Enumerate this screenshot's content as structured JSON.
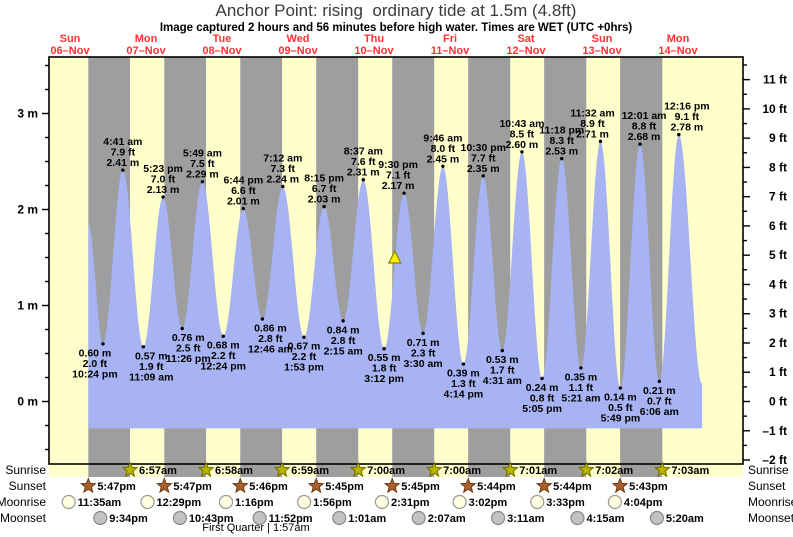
{
  "title": "Anchor Point: rising  ordinary tide at 1.5m (4.8ft)",
  "subtitle": "Image captured 2 hours and 56 minutes before high water. Times are WET (UTC +0hrs)",
  "chart_data": {
    "type": "area",
    "x_axis": {
      "days": [
        {
          "name": "Sun",
          "date": "06–Nov"
        },
        {
          "name": "Mon",
          "date": "07–Nov"
        },
        {
          "name": "Tue",
          "date": "08–Nov"
        },
        {
          "name": "Wed",
          "date": "09–Nov"
        },
        {
          "name": "Thu",
          "date": "10–Nov"
        },
        {
          "name": "Fri",
          "date": "11–Nov"
        },
        {
          "name": "Sat",
          "date": "12–Nov"
        },
        {
          "name": "Sun",
          "date": "13–Nov"
        },
        {
          "name": "Mon",
          "date": "14–Nov"
        }
      ]
    },
    "y_axis_left": {
      "unit": "m",
      "values": [
        0,
        1,
        2,
        3
      ],
      "labels": [
        "0 m",
        "1 m",
        "2 m",
        "3 m"
      ]
    },
    "y_axis_right": {
      "unit": "ft",
      "values": [
        -2,
        -1,
        0,
        1,
        2,
        3,
        4,
        5,
        6,
        7,
        8,
        9,
        10,
        11
      ],
      "labels": [
        "–2 ft",
        "–1 ft",
        "0 ft",
        "1 ft",
        "2 ft",
        "3 ft",
        "4 ft",
        "5 ft",
        "6 ft",
        "7 ft",
        "8 ft",
        "9 ft",
        "10 ft",
        "11 ft"
      ]
    },
    "tide_events": [
      {
        "kind": "low",
        "day": 0,
        "time": "10:24 pm",
        "ft": "2.0 ft",
        "m": "0.60 m"
      },
      {
        "kind": "high",
        "day": 1,
        "time": "4:41 am",
        "ft": "7.9 ft",
        "m": "2.41 m"
      },
      {
        "kind": "low",
        "day": 1,
        "time": "11:09 am",
        "ft": "1.9 ft",
        "m": "0.57 m"
      },
      {
        "kind": "high",
        "day": 1,
        "time": "5:23 pm",
        "ft": "7.0 ft",
        "m": "2.13 m"
      },
      {
        "kind": "low",
        "day": 1,
        "time": "11:26 pm",
        "ft": "2.5 ft",
        "m": "0.76 m"
      },
      {
        "kind": "high",
        "day": 2,
        "time": "5:49 am",
        "ft": "7.5 ft",
        "m": "2.29 m"
      },
      {
        "kind": "low",
        "day": 2,
        "time": "12:24 pm",
        "ft": "2.2 ft",
        "m": "0.68 m"
      },
      {
        "kind": "high",
        "day": 2,
        "time": "6:44 pm",
        "ft": "6.6 ft",
        "m": "2.01 m"
      },
      {
        "kind": "low",
        "day": 3,
        "time": "12:46 am",
        "ft": "2.8 ft",
        "m": "0.86 m"
      },
      {
        "kind": "high",
        "day": 3,
        "time": "7:12 am",
        "ft": "7.3 ft",
        "m": "2.24 m"
      },
      {
        "kind": "low",
        "day": 3,
        "time": "1:53 pm",
        "ft": "2.2 ft",
        "m": "0.67 m"
      },
      {
        "kind": "high",
        "day": 3,
        "time": "8:15 pm",
        "ft": "6.7 ft",
        "m": "2.03 m"
      },
      {
        "kind": "low",
        "day": 4,
        "time": "2:15 am",
        "ft": "2.8 ft",
        "m": "0.84 m"
      },
      {
        "kind": "high",
        "day": 4,
        "time": "8:37 am",
        "ft": "7.6 ft",
        "m": "2.31 m"
      },
      {
        "kind": "low",
        "day": 4,
        "time": "3:12 pm",
        "ft": "1.8 ft",
        "m": "0.55 m"
      },
      {
        "kind": "high",
        "day": 4,
        "time": "9:30 pm",
        "ft": "7.1 ft",
        "m": "2.17 m"
      },
      {
        "kind": "low",
        "day": 5,
        "time": "3:30 am",
        "ft": "2.3 ft",
        "m": "0.71 m"
      },
      {
        "kind": "high",
        "day": 5,
        "time": "9:46 am",
        "ft": "8.0 ft",
        "m": "2.45 m"
      },
      {
        "kind": "low",
        "day": 5,
        "time": "4:14 pm",
        "ft": "1.3 ft",
        "m": "0.39 m"
      },
      {
        "kind": "high",
        "day": 5,
        "time": "10:30 pm",
        "ft": "7.7 ft",
        "m": "2.35 m"
      },
      {
        "kind": "low",
        "day": 6,
        "time": "4:31 am",
        "ft": "1.7 ft",
        "m": "0.53 m"
      },
      {
        "kind": "high",
        "day": 6,
        "time": "10:43 am",
        "ft": "8.5 ft",
        "m": "2.60 m"
      },
      {
        "kind": "low",
        "day": 6,
        "time": "5:05 pm",
        "ft": "0.8 ft",
        "m": "0.24 m"
      },
      {
        "kind": "high",
        "day": 6,
        "time": "11:18 pm",
        "ft": "8.3 ft",
        "m": "2.53 m"
      },
      {
        "kind": "low",
        "day": 7,
        "time": "5:21 am",
        "ft": "1.1 ft",
        "m": "0.35 m"
      },
      {
        "kind": "high",
        "day": 7,
        "time": "11:32 am",
        "ft": "8.9 ft",
        "m": "2.71 m"
      },
      {
        "kind": "low",
        "day": 7,
        "time": "5:49 pm",
        "ft": "0.5 ft",
        "m": "0.14 m"
      },
      {
        "kind": "high",
        "day": 8,
        "time": "12:01 am",
        "ft": "8.8 ft",
        "m": "2.68 m"
      },
      {
        "kind": "low",
        "day": 8,
        "time": "6:06 am",
        "ft": "0.7 ft",
        "m": "0.21 m"
      },
      {
        "kind": "high",
        "day": 8,
        "time": "12:16 pm",
        "ft": "9.1 ft",
        "m": "2.78 m"
      }
    ],
    "curve": {
      "visible_start": {
        "day": 0,
        "hour": 17.8,
        "height_m": 1.85
      },
      "visible_end": {
        "day": 8,
        "hour": 19.6,
        "height_m": 0.18
      },
      "base_m": -0.28
    },
    "current_marker": {
      "day": 4,
      "hour": 18.57,
      "height_m": 1.5
    },
    "colors": {
      "day_band": "#ffffcc",
      "night_band": "#9e9e9e",
      "tide_fill": "#a7b3f2",
      "date_red": "#ff3232",
      "sunrise_star_fill": "#b9b600",
      "sunrise_star_stroke": "#6f6c00",
      "sunset_star_fill": "#a8602c",
      "sunset_star_stroke": "#6e3c14",
      "moonrise_fill": "#ffffe0",
      "moonrise_stroke": "#999999",
      "moonset_fill": "#c2c2c2",
      "moonset_stroke": "#888888",
      "current_marker_fill": "#ffec00",
      "current_marker_stroke": "#8a8400"
    }
  },
  "astro": {
    "rows": [
      {
        "key": "sunrise",
        "label": "Sunrise",
        "icon": "sun-star",
        "events": [
          {
            "day": 1,
            "time": "6:57am"
          },
          {
            "day": 2,
            "time": "6:58am"
          },
          {
            "day": 3,
            "time": "6:59am"
          },
          {
            "day": 4,
            "time": "7:00am"
          },
          {
            "day": 5,
            "time": "7:00am"
          },
          {
            "day": 6,
            "time": "7:01am"
          },
          {
            "day": 7,
            "time": "7:02am"
          },
          {
            "day": 8,
            "time": "7:03am"
          }
        ]
      },
      {
        "key": "sunset",
        "label": "Sunset",
        "icon": "sun-star",
        "events": [
          {
            "day": 0,
            "time": "5:47pm"
          },
          {
            "day": 1,
            "time": "5:47pm"
          },
          {
            "day": 2,
            "time": "5:46pm"
          },
          {
            "day": 3,
            "time": "5:45pm"
          },
          {
            "day": 4,
            "time": "5:45pm"
          },
          {
            "day": 5,
            "time": "5:44pm"
          },
          {
            "day": 6,
            "time": "5:44pm"
          },
          {
            "day": 7,
            "time": "5:43pm"
          }
        ]
      },
      {
        "key": "moonrise",
        "label": "Moonrise",
        "icon": "moon-circle",
        "events": [
          {
            "day": 0,
            "time": "11:35am"
          },
          {
            "day": 1,
            "time": "12:29pm"
          },
          {
            "day": 2,
            "time": "1:16pm"
          },
          {
            "day": 3,
            "time": "1:56pm"
          },
          {
            "day": 4,
            "time": "2:31pm"
          },
          {
            "day": 5,
            "time": "3:02pm"
          },
          {
            "day": 6,
            "time": "3:33pm"
          },
          {
            "day": 7,
            "time": "4:04pm"
          }
        ]
      },
      {
        "key": "moonset",
        "label": "Moonset",
        "icon": "moon-circle",
        "events": [
          {
            "day": 0,
            "time": "9:34pm"
          },
          {
            "day": 1,
            "time": "10:43pm"
          },
          {
            "day": 2,
            "time": "11:52pm"
          },
          {
            "day": 4,
            "time": "1:01am"
          },
          {
            "day": 5,
            "time": "2:07am"
          },
          {
            "day": 6,
            "time": "3:11am"
          },
          {
            "day": 7,
            "time": "4:15am"
          },
          {
            "day": 8,
            "time": "5:20am"
          }
        ]
      }
    ],
    "footnote": "First Quarter | 1:57am"
  }
}
